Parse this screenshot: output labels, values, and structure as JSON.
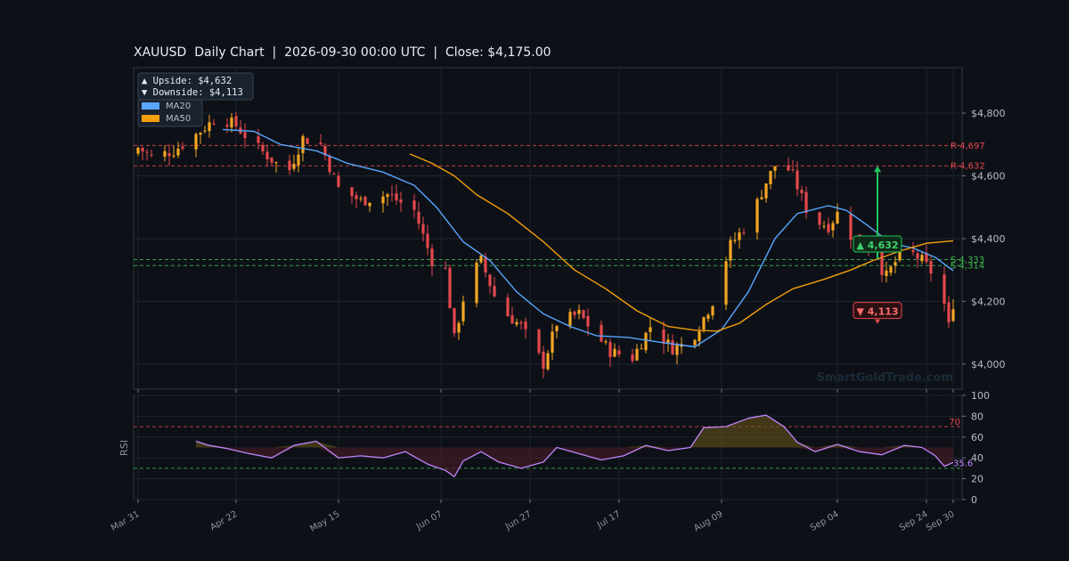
{
  "chart_title": "XAUUSD  Daily Chart  |  2026-09-30 00:00 UTC  |  Close: $4,175.00",
  "watermark": "SmartGoldTrade.com",
  "legend": {
    "upside_label": "▲ Upside:   $4,632",
    "downside_label": "▼ Downside: $4,113",
    "ma20_label": "MA20",
    "ma50_label": "MA50"
  },
  "colors": {
    "background": "#0d1117",
    "bull": "#f5a623",
    "bear": "#e5484d",
    "ma20": "#58a6ff",
    "ma50": "#f59e0b",
    "resistance": "#e5484d",
    "support": "#3fb950",
    "rsi": "#c084fc"
  },
  "chart_data": {
    "type": "candlestick",
    "title": "XAUUSD  Daily Chart  |  2026-09-30 00:00 UTC  |  Close: $4,175.00",
    "x_range": [
      "2026-03-30",
      "2026-10-02"
    ],
    "ylim": [
      3920,
      4945
    ],
    "y_ticks": [
      4000,
      4200,
      4400,
      4600,
      4800
    ],
    "y_tick_labels": [
      "$4,000",
      "$4,200",
      "$4,400",
      "$4,600",
      "$4,800"
    ],
    "x_ticks": [
      "2026-03-31",
      "2026-04-22",
      "2026-05-15",
      "2026-06-07",
      "2026-06-27",
      "2026-07-17",
      "2026-08-09",
      "2026-09-04",
      "2026-09-24",
      "2026-09-30"
    ],
    "x_tick_labels": [
      "Mar 31",
      "Apr 22",
      "May 15",
      "Jun 07",
      "Jun 27",
      "Jul 17",
      "Aug 09",
      "Sep 04",
      "Sep 24",
      "Sep 30"
    ],
    "grid": true,
    "legend_position": "top-left",
    "close_anchors": [
      [
        "2026-03-31",
        4690
      ],
      [
        "2026-04-03",
        4660
      ],
      [
        "2026-04-08",
        4680
      ],
      [
        "2026-04-12",
        4720
      ],
      [
        "2026-04-18",
        4790
      ],
      [
        "2026-04-22",
        4760
      ],
      [
        "2026-04-26",
        4700
      ],
      [
        "2026-05-01",
        4640
      ],
      [
        "2026-05-04",
        4620
      ],
      [
        "2026-05-07",
        4720
      ],
      [
        "2026-05-11",
        4700
      ],
      [
        "2026-05-15",
        4560
      ],
      [
        "2026-05-20",
        4520
      ],
      [
        "2026-05-26",
        4540
      ],
      [
        "2026-06-01",
        4490
      ],
      [
        "2026-06-05",
        4330
      ],
      [
        "2026-06-08",
        4300
      ],
      [
        "2026-06-10",
        4080
      ],
      [
        "2026-06-13",
        4270
      ],
      [
        "2026-06-16",
        4330
      ],
      [
        "2026-06-20",
        4180
      ],
      [
        "2026-06-25",
        4120
      ],
      [
        "2026-06-30",
        4000
      ],
      [
        "2026-07-03",
        4130
      ],
      [
        "2026-07-08",
        4160
      ],
      [
        "2026-07-12",
        4090
      ],
      [
        "2026-07-15",
        4040
      ],
      [
        "2026-07-20",
        4020
      ],
      [
        "2026-07-24",
        4120
      ],
      [
        "2026-07-29",
        4050
      ],
      [
        "2026-08-02",
        4070
      ],
      [
        "2026-08-07",
        4200
      ],
      [
        "2026-08-11",
        4380
      ],
      [
        "2026-08-15",
        4450
      ],
      [
        "2026-08-19",
        4580
      ],
      [
        "2026-08-22",
        4660
      ],
      [
        "2026-08-25",
        4600
      ],
      [
        "2026-08-29",
        4460
      ],
      [
        "2026-09-02",
        4440
      ],
      [
        "2026-09-04",
        4480
      ],
      [
        "2026-09-07",
        4410
      ],
      [
        "2026-09-11",
        4370
      ],
      [
        "2026-09-15",
        4280
      ],
      [
        "2026-09-19",
        4370
      ],
      [
        "2026-09-23",
        4330
      ],
      [
        "2026-09-27",
        4260
      ],
      [
        "2026-09-29",
        4120
      ],
      [
        "2026-09-30",
        4175
      ]
    ],
    "ma20": [
      [
        "2026-04-19",
        4748
      ],
      [
        "2026-04-26",
        4742
      ],
      [
        "2026-05-02",
        4700
      ],
      [
        "2026-05-10",
        4680
      ],
      [
        "2026-05-17",
        4640
      ],
      [
        "2026-05-25",
        4612
      ],
      [
        "2026-06-01",
        4570
      ],
      [
        "2026-06-06",
        4500
      ],
      [
        "2026-06-12",
        4390
      ],
      [
        "2026-06-18",
        4330
      ],
      [
        "2026-06-24",
        4230
      ],
      [
        "2026-06-30",
        4160
      ],
      [
        "2026-07-06",
        4120
      ],
      [
        "2026-07-12",
        4090
      ],
      [
        "2026-07-19",
        4085
      ],
      [
        "2026-07-26",
        4070
      ],
      [
        "2026-08-03",
        4055
      ],
      [
        "2026-08-09",
        4110
      ],
      [
        "2026-08-15",
        4230
      ],
      [
        "2026-08-21",
        4400
      ],
      [
        "2026-08-26",
        4480
      ],
      [
        "2026-09-02",
        4505
      ],
      [
        "2026-09-06",
        4490
      ],
      [
        "2026-09-11",
        4440
      ],
      [
        "2026-09-16",
        4385
      ],
      [
        "2026-09-21",
        4370
      ],
      [
        "2026-09-26",
        4340
      ],
      [
        "2026-09-30",
        4298
      ]
    ],
    "ma50": [
      [
        "2026-05-31",
        4670
      ],
      [
        "2026-06-05",
        4640
      ],
      [
        "2026-06-10",
        4600
      ],
      [
        "2026-06-15",
        4540
      ],
      [
        "2026-06-22",
        4480
      ],
      [
        "2026-06-30",
        4390
      ],
      [
        "2026-07-07",
        4300
      ],
      [
        "2026-07-14",
        4240
      ],
      [
        "2026-07-21",
        4170
      ],
      [
        "2026-07-28",
        4120
      ],
      [
        "2026-08-03",
        4108
      ],
      [
        "2026-08-08",
        4105
      ],
      [
        "2026-08-13",
        4130
      ],
      [
        "2026-08-19",
        4190
      ],
      [
        "2026-08-25",
        4240
      ],
      [
        "2026-09-01",
        4270
      ],
      [
        "2026-09-07",
        4300
      ],
      [
        "2026-09-12",
        4330
      ],
      [
        "2026-09-18",
        4360
      ],
      [
        "2026-09-24",
        4385
      ],
      [
        "2026-09-30",
        4393
      ]
    ],
    "levels": [
      {
        "label": "R 4,697",
        "value": 4697,
        "kind": "resistance"
      },
      {
        "label": "R 4,632",
        "value": 4632,
        "kind": "resistance"
      },
      {
        "label": "S 4,333",
        "value": 4333,
        "kind": "support"
      },
      {
        "label": "S 4,314",
        "value": 4314,
        "kind": "support"
      }
    ],
    "targets": {
      "from_date": "2026-09-13",
      "from_price": 4335,
      "upside": {
        "label": "▲ 4,632",
        "value": 4632
      },
      "downside": {
        "label": "▼ 4,113",
        "value": 4113
      }
    },
    "rsi": {
      "ylabel": "RSI",
      "ylim": [
        0,
        100
      ],
      "y_ticks": [
        0,
        20,
        40,
        60,
        80,
        100
      ],
      "overbought": 70,
      "oversold": 30,
      "overbought_label": "70",
      "last_label": "35.6",
      "series": [
        [
          "2026-04-13",
          56
        ],
        [
          "2026-04-16",
          52
        ],
        [
          "2026-04-20",
          49
        ],
        [
          "2026-04-25",
          44
        ],
        [
          "2026-04-30",
          40
        ],
        [
          "2026-05-05",
          52
        ],
        [
          "2026-05-10",
          56
        ],
        [
          "2026-05-15",
          40
        ],
        [
          "2026-05-20",
          42
        ],
        [
          "2026-05-25",
          40
        ],
        [
          "2026-05-30",
          46
        ],
        [
          "2026-06-04",
          34
        ],
        [
          "2026-06-08",
          28
        ],
        [
          "2026-06-10",
          22
        ],
        [
          "2026-06-12",
          37
        ],
        [
          "2026-06-16",
          46
        ],
        [
          "2026-06-20",
          36
        ],
        [
          "2026-06-25",
          30
        ],
        [
          "2026-06-30",
          36
        ],
        [
          "2026-07-03",
          50
        ],
        [
          "2026-07-08",
          44
        ],
        [
          "2026-07-13",
          38
        ],
        [
          "2026-07-18",
          42
        ],
        [
          "2026-07-23",
          52
        ],
        [
          "2026-07-28",
          47
        ],
        [
          "2026-08-02",
          50
        ],
        [
          "2026-08-05",
          69
        ],
        [
          "2026-08-10",
          70
        ],
        [
          "2026-08-15",
          78
        ],
        [
          "2026-08-19",
          81
        ],
        [
          "2026-08-23",
          70
        ],
        [
          "2026-08-26",
          55
        ],
        [
          "2026-08-30",
          46
        ],
        [
          "2026-09-04",
          53
        ],
        [
          "2026-09-09",
          46
        ],
        [
          "2026-09-14",
          43
        ],
        [
          "2026-09-19",
          52
        ],
        [
          "2026-09-23",
          50
        ],
        [
          "2026-09-26",
          42
        ],
        [
          "2026-09-28",
          32
        ],
        [
          "2026-09-30",
          35.6
        ]
      ]
    }
  }
}
